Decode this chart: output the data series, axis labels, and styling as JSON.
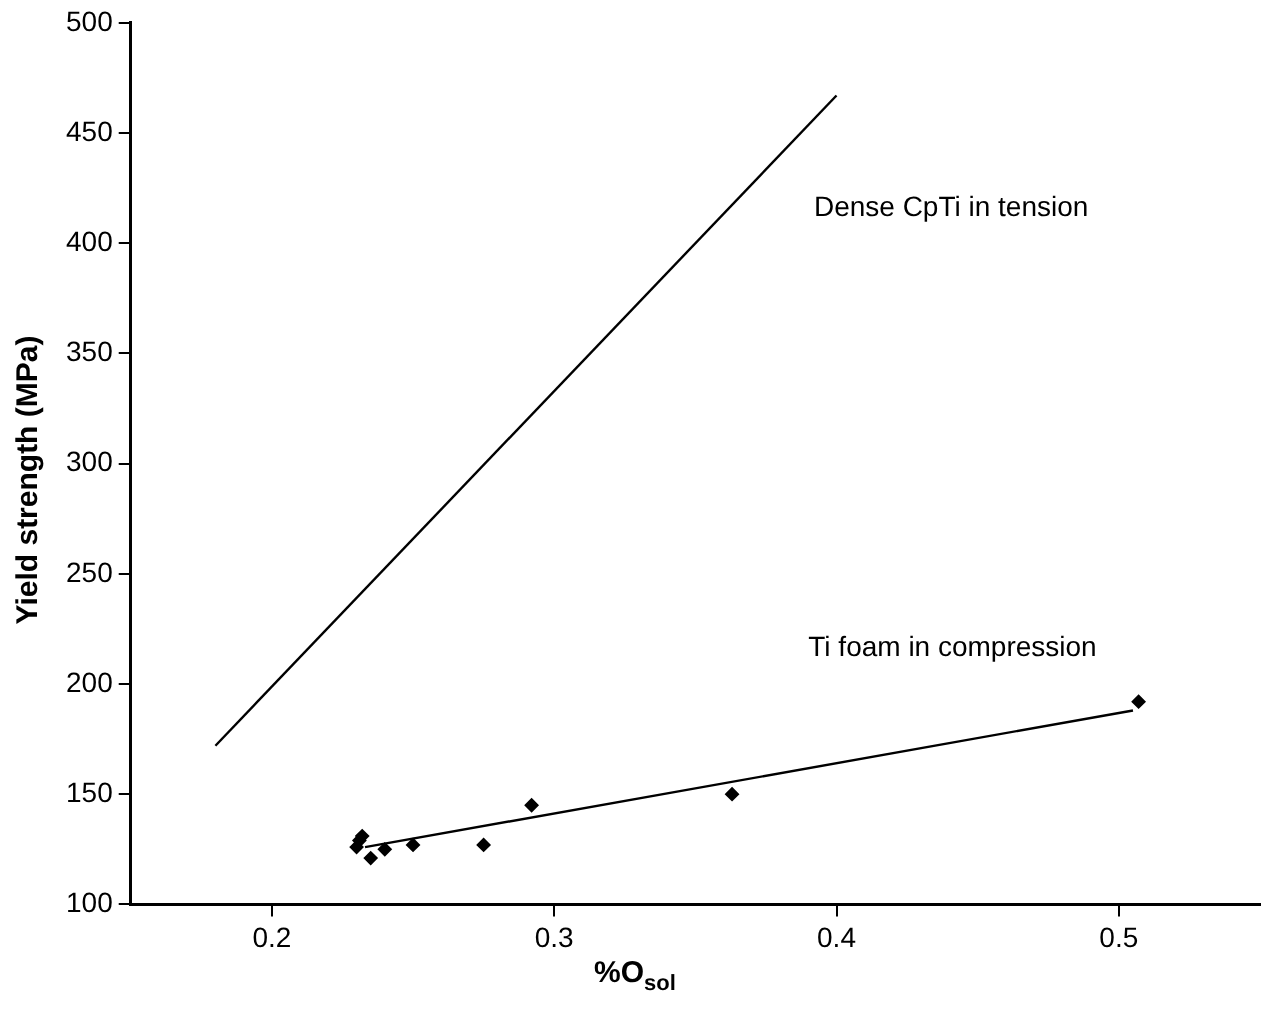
{
  "chart_data": {
    "type": "scatter",
    "xlabel": "%O$_{sol}$",
    "ylabel": "Yield strength (MPa)",
    "xlim": [
      0.15,
      0.55
    ],
    "xticks": [
      0.2,
      0.3,
      0.4,
      0.5
    ],
    "ylim": [
      100,
      500
    ],
    "yticks": [
      100,
      150,
      200,
      250,
      300,
      350,
      400,
      450,
      500
    ],
    "grid": false,
    "legend": false,
    "series": [
      {
        "type": "line",
        "marker": "none",
        "color": "#000000",
        "x": [
          0.18,
          0.4
        ],
        "values": [
          172,
          467
        ]
      },
      {
        "type": "line",
        "marker": "none",
        "color": "#000000",
        "x": [
          0.233,
          0.505
        ],
        "values": [
          126,
          188
        ]
      },
      {
        "marker": "diamond",
        "color": "#000000",
        "x": [
          0.23,
          0.231,
          0.232,
          0.235,
          0.24,
          0.25,
          0.275,
          0.292,
          0.363,
          0.507
        ],
        "values": [
          126,
          129,
          131,
          121,
          125,
          127,
          127,
          145,
          150,
          192
        ]
      }
    ],
    "annotations": [
      "Dense CpTi in tension",
      "Ti foam in compression"
    ]
  }
}
